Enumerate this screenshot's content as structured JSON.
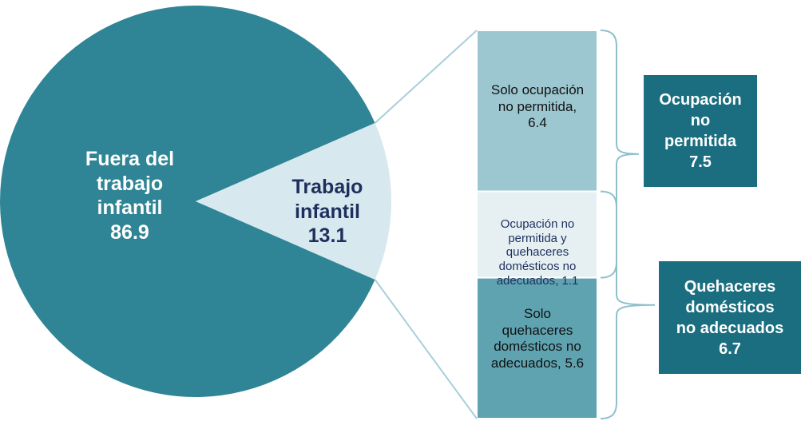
{
  "chart_data": {
    "type": "pie",
    "slices": [
      {
        "label": "Fuera del trabajo infantil",
        "value": 86.9,
        "color": "#2f8595"
      },
      {
        "label": "Trabajo infantil",
        "value": 13.1,
        "color": "#d7e8ee"
      }
    ],
    "breakdown": [
      {
        "label": "Solo ocupación no permitida",
        "value": 6.4,
        "color": "#9cc7d0"
      },
      {
        "label": "Ocupación no permitida y quehaceres domésticos no adecuados",
        "value": 1.1,
        "color": "#e6f0f3"
      },
      {
        "label": "Solo quehaceres domésticos no adecuados",
        "value": 5.6,
        "color": "#5fa3b1"
      }
    ],
    "totals": [
      {
        "label": "Ocupación no permitida",
        "value": 7.5,
        "color": "#1a6e80"
      },
      {
        "label": "Quehaceres domésticos no adecuados",
        "value": 6.7,
        "color": "#1a6e80"
      }
    ]
  },
  "labels": {
    "pie_main": [
      "Fuera del",
      "trabajo",
      "infantil",
      "86.9"
    ],
    "pie_small": [
      "Trabajo",
      "infantil",
      "13.1"
    ],
    "bar_top": [
      "Solo ocupación",
      "no permitida,",
      "6.4"
    ],
    "bar_mid": [
      "Ocupación no",
      "permitida y",
      "quehaceres",
      "domésticos no",
      "adecuados, 1.1"
    ],
    "bar_bot": [
      "Solo",
      "quehaceres",
      "domésticos no",
      "adecuados, 5.6"
    ],
    "total_top": [
      "Ocupación",
      "no",
      "permitida",
      "7.5"
    ],
    "total_bot": [
      "Quehaceres",
      "domésticos",
      "no adecuados",
      "6.7"
    ]
  }
}
